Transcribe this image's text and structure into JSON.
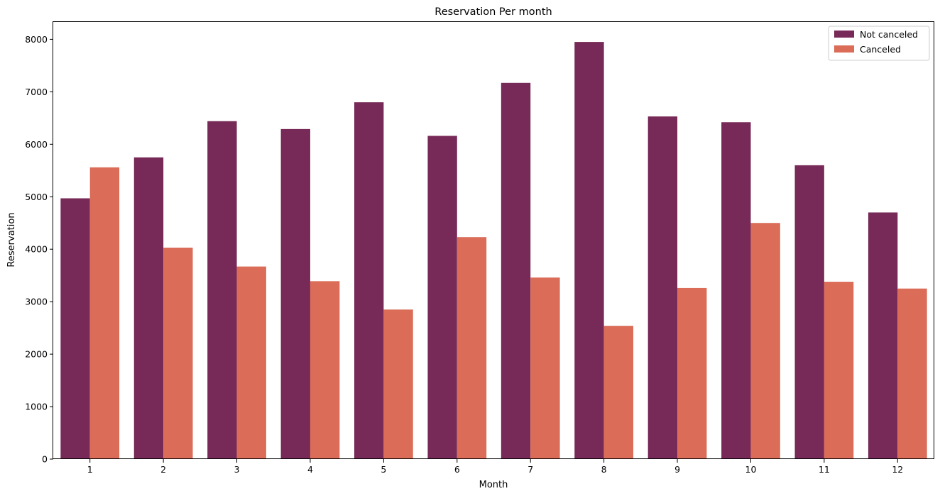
{
  "chart_data": {
    "type": "bar",
    "title": "Reservation Per month",
    "xlabel": "Month",
    "ylabel": "Reservation",
    "categories": [
      "1",
      "2",
      "3",
      "4",
      "5",
      "6",
      "7",
      "8",
      "9",
      "10",
      "11",
      "12"
    ],
    "ylim": [
      0,
      8330
    ],
    "yticks": [
      0,
      1000,
      2000,
      3000,
      4000,
      5000,
      6000,
      7000,
      8000
    ],
    "grid": false,
    "legend_position": "top-right",
    "series": [
      {
        "name": "Not canceled",
        "color": "#772a58",
        "values": [
          4970,
          5750,
          6440,
          6290,
          6800,
          6160,
          7170,
          7950,
          6530,
          6420,
          5600,
          4700
        ]
      },
      {
        "name": "Canceled",
        "color": "#da6c58",
        "values": [
          5560,
          4030,
          3670,
          3390,
          2850,
          4230,
          3460,
          2540,
          3260,
          4500,
          3380,
          3250
        ]
      }
    ]
  }
}
